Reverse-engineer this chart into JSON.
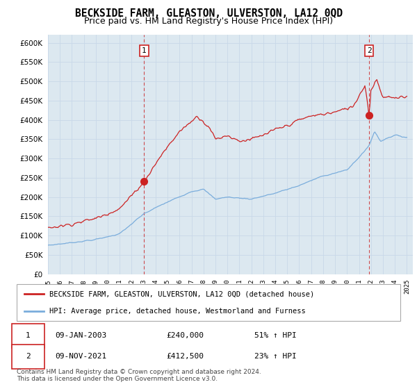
{
  "title": "BECKSIDE FARM, GLEASTON, ULVERSTON, LA12 0QD",
  "subtitle": "Price paid vs. HM Land Registry's House Price Index (HPI)",
  "title_fontsize": 10.5,
  "subtitle_fontsize": 9,
  "legend_line1": "BECKSIDE FARM, GLEASTON, ULVERSTON, LA12 0QD (detached house)",
  "legend_line2": "HPI: Average price, detached house, Westmorland and Furness",
  "transaction1_date": "09-JAN-2003",
  "transaction1_price": "£240,000",
  "transaction1_hpi": "51% ↑ HPI",
  "transaction2_date": "09-NOV-2021",
  "transaction2_price": "£412,500",
  "transaction2_hpi": "23% ↑ HPI",
  "footer": "Contains HM Land Registry data © Crown copyright and database right 2024.\nThis data is licensed under the Open Government Licence v3.0.",
  "hpi_color": "#7aaddc",
  "price_color": "#cc2222",
  "marker_dot_color": "#cc2222",
  "vline_color": "#cc2222",
  "grid_color": "#c8d8e8",
  "bg_color": "#dce8f0",
  "plot_bg": "#dce8f0",
  "ylim_min": 0,
  "ylim_max": 620000,
  "ytick_step": 50000,
  "year_start": 1995,
  "year_end": 2025,
  "transaction1_year": 2003.04,
  "transaction1_price_val": 240000,
  "transaction2_year": 2021.86,
  "transaction2_price_val": 412500,
  "label_box_color": "#cc2222"
}
